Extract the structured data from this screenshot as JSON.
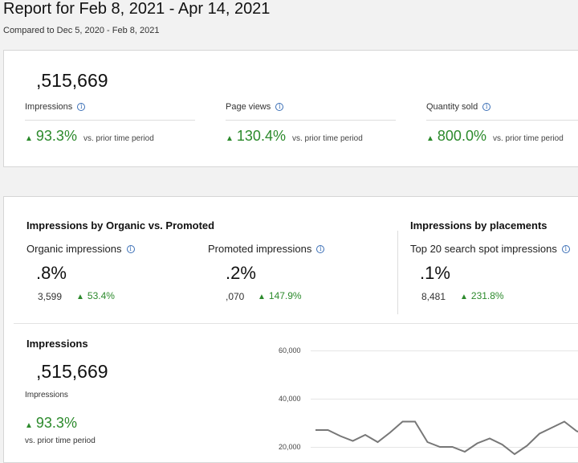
{
  "header": {
    "title": "Report for Feb 8, 2021 - Apr 14, 2021",
    "compared": "Compared to Dec 5, 2020 - Feb 8, 2021"
  },
  "summary": {
    "total_impressions": ",515,669",
    "metrics": [
      {
        "label": "Impressions",
        "change": "93.3%",
        "vs": "vs. prior time period"
      },
      {
        "label": "Page views",
        "change": "130.4%",
        "vs": "vs. prior time period"
      },
      {
        "label": "Quantity sold",
        "change": "800.0%",
        "vs": "vs. prior time period"
      }
    ]
  },
  "organic_promoted": {
    "heading": "Impressions by Organic vs. Promoted",
    "organic": {
      "label": "Organic impressions",
      "share": ".8%",
      "count": "3,599",
      "change": "53.4%"
    },
    "promoted": {
      "label": "Promoted impressions",
      "share": ".2%",
      "count": ",070",
      "change": "147.9%"
    }
  },
  "placements": {
    "heading": "Impressions by placements",
    "top20": {
      "label": "Top 20 search spot impressions",
      "share": ".1%",
      "count": "8,481",
      "change": "231.8%"
    }
  },
  "impressions_chart": {
    "heading": "Impressions",
    "total": ",515,669",
    "label": "Impressions",
    "change": "93.3%",
    "vs": "vs. prior time period"
  },
  "chart_data": {
    "type": "line",
    "title": "",
    "xlabel": "",
    "ylabel": "",
    "ylim": [
      0,
      60000
    ],
    "y_ticks": [
      "60,000",
      "40,000",
      "20,000"
    ],
    "y_tick_values": [
      60000,
      40000,
      20000
    ],
    "series": [
      {
        "values": [
          27000,
          27000,
          24500,
          22500,
          25000,
          22000,
          26000,
          30500,
          30500,
          22000,
          20000,
          20000,
          18000,
          21500,
          23500,
          21000,
          17000,
          20500,
          25500,
          28000,
          30500,
          26500,
          25000
        ]
      }
    ]
  },
  "colors": {
    "positive": "#2c8a2c",
    "info": "#3b6fb6",
    "line": "#777777"
  }
}
